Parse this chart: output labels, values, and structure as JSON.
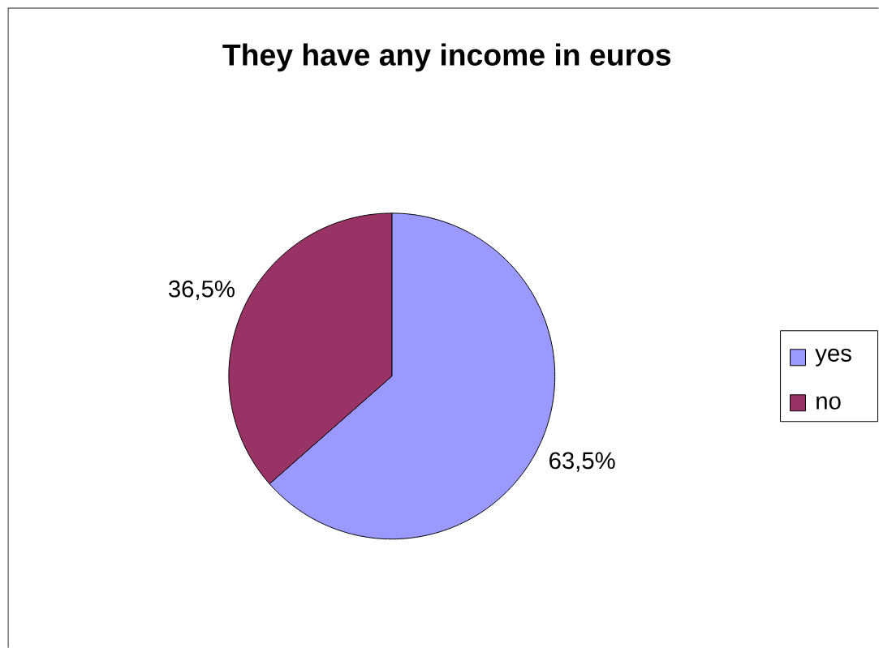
{
  "chart_data": {
    "type": "pie",
    "title": "They have any income in euros",
    "categories": [
      "yes",
      "no"
    ],
    "values": [
      63.5,
      36.5
    ],
    "colors": [
      "#9999ff",
      "#993366"
    ],
    "value_labels": [
      "63,5%",
      "36,5%"
    ],
    "legend": "right"
  }
}
